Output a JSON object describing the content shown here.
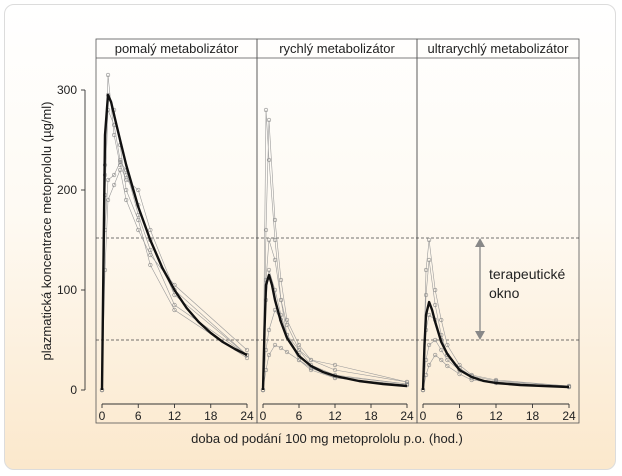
{
  "chart_data": {
    "type": "line",
    "xlabel": "doba od podání 100 mg metoprololu p.o. (hod.)",
    "ylabel": "plazmatická koncentrace metoprololu (µg/ml)",
    "xlim": [
      0,
      25
    ],
    "ylim": [
      -5,
      318
    ],
    "yticks": [
      0,
      100,
      200,
      300
    ],
    "xticks": [
      0,
      6,
      12,
      18,
      24
    ],
    "therapeutic_window": {
      "lower": 50,
      "upper": 152,
      "label": [
        "terapeutické",
        "okno"
      ]
    },
    "grid": false,
    "panels": [
      {
        "title": "pomalý metabolizátor",
        "mean_curve": {
          "x": [
            0,
            0.25,
            0.5,
            1,
            1.5,
            2,
            3,
            4,
            6,
            8,
            10,
            12,
            14,
            16,
            18,
            20,
            22,
            24
          ],
          "y": [
            0,
            130,
            255,
            295,
            288,
            275,
            250,
            225,
            183,
            150,
            122,
            100,
            82,
            68,
            57,
            48,
            41,
            35
          ]
        },
        "individual_curves": [
          {
            "x": [
              0,
              0.5,
              1,
              2,
              3,
              4,
              6,
              8,
              12,
              24
            ],
            "y": [
              0,
              215,
              315,
              255,
              225,
              210,
              200,
              160,
              100,
              35
            ]
          },
          {
            "x": [
              0,
              0.5,
              1,
              2,
              3,
              4,
              6,
              8,
              12,
              24
            ],
            "y": [
              0,
              195,
              280,
              265,
              230,
              215,
              185,
              150,
              95,
              35
            ]
          },
          {
            "x": [
              0,
              0.5,
              1,
              2,
              3,
              4,
              6,
              8,
              12,
              24
            ],
            "y": [
              0,
              160,
              210,
              215,
              228,
              220,
              175,
              140,
              85,
              35
            ]
          },
          {
            "x": [
              0,
              0.5,
              1,
              2,
              3,
              4,
              6,
              8,
              12,
              24
            ],
            "y": [
              0,
              120,
              190,
              205,
              220,
              190,
              160,
              135,
              105,
              40
            ]
          },
          {
            "x": [
              0,
              0.5,
              1,
              2,
              3,
              4,
              6,
              8,
              12,
              24
            ],
            "y": [
              0,
              225,
              295,
              280,
              245,
              200,
              170,
              125,
              80,
              32
            ]
          }
        ]
      },
      {
        "title": "rychlý metabolizátor",
        "mean_curve": {
          "x": [
            0,
            0.25,
            0.5,
            1,
            1.5,
            2,
            3,
            4,
            6,
            8,
            10,
            12,
            16,
            20,
            24
          ],
          "y": [
            0,
            60,
            105,
            115,
            105,
            90,
            68,
            52,
            34,
            24,
            18,
            14,
            9,
            6,
            4
          ]
        },
        "individual_curves": [
          {
            "x": [
              0,
              0.5,
              1,
              2,
              3,
              4,
              6,
              8,
              12,
              24
            ],
            "y": [
              0,
              280,
              230,
              150,
              90,
              55,
              30,
              20,
              12,
              5
            ]
          },
          {
            "x": [
              0,
              0.5,
              1,
              2,
              3,
              4,
              6,
              8,
              12,
              24
            ],
            "y": [
              0,
              160,
              270,
              170,
              110,
              70,
              45,
              30,
              20,
              8
            ]
          },
          {
            "x": [
              0,
              0.5,
              1,
              2,
              3,
              4,
              6,
              8,
              12,
              24
            ],
            "y": [
              0,
              110,
              150,
              130,
              90,
              65,
              40,
              25,
              15,
              6
            ]
          },
          {
            "x": [
              0,
              0.5,
              1,
              2,
              3,
              4,
              6,
              8,
              12,
              24
            ],
            "y": [
              0,
              40,
              60,
              80,
              70,
              55,
              35,
              22,
              12,
              5
            ]
          },
          {
            "x": [
              0,
              0.5,
              1,
              2,
              3,
              4,
              6,
              8,
              12,
              24
            ],
            "y": [
              0,
              20,
              35,
              45,
              42,
              38,
              30,
              22,
              14,
              6
            ]
          },
          {
            "x": [
              0,
              0.5,
              1,
              2,
              3,
              4,
              6,
              8,
              12,
              24
            ],
            "y": [
              0,
              90,
              120,
              100,
              75,
              55,
              40,
              30,
              25,
              8
            ]
          }
        ]
      },
      {
        "title": "ultrarychlý metabolizátor",
        "mean_curve": {
          "x": [
            0,
            0.25,
            0.5,
            1,
            1.5,
            2,
            3,
            4,
            6,
            8,
            10,
            12,
            16,
            20,
            24
          ],
          "y": [
            0,
            45,
            75,
            88,
            80,
            68,
            48,
            36,
            20,
            13,
            9,
            7,
            5,
            4,
            3
          ]
        },
        "individual_curves": [
          {
            "x": [
              0,
              0.5,
              1,
              2,
              3,
              4,
              6,
              8,
              12,
              24
            ],
            "y": [
              0,
              120,
              150,
              100,
              70,
              45,
              25,
              15,
              10,
              4
            ]
          },
          {
            "x": [
              0,
              0.5,
              1,
              2,
              3,
              4,
              6,
              8,
              12,
              24
            ],
            "y": [
              0,
              95,
              130,
              85,
              55,
              35,
              20,
              12,
              8,
              3
            ]
          },
          {
            "x": [
              0,
              0.5,
              1,
              2,
              3,
              4,
              6,
              8,
              12,
              24
            ],
            "y": [
              0,
              60,
              75,
              70,
              50,
              35,
              22,
              14,
              9,
              4
            ]
          },
          {
            "x": [
              0,
              0.5,
              1,
              2,
              3,
              4,
              6,
              8,
              12,
              24
            ],
            "y": [
              0,
              30,
              45,
              50,
              40,
              30,
              20,
              12,
              8,
              3
            ]
          },
          {
            "x": [
              0,
              0.5,
              1,
              2,
              3,
              4,
              6,
              8,
              12,
              24
            ],
            "y": [
              0,
              15,
              25,
              35,
              30,
              24,
              16,
              10,
              7,
              3
            ]
          }
        ]
      }
    ]
  }
}
